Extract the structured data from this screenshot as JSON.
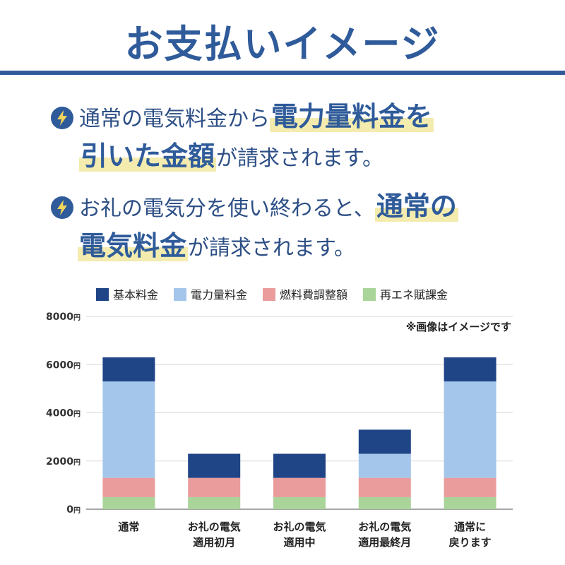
{
  "header": {
    "title": "お支払いイメージ"
  },
  "bullets": [
    {
      "icon": "lightning-icon",
      "line1_plain": "通常の電気料金から",
      "line1_hl": "電力量料金を",
      "line2_hl": "引いた金額",
      "line2_plain": "が請求されます。"
    },
    {
      "icon": "lightning-icon",
      "line1_plain": "お礼の電気分を使い終わると、",
      "line1_hl": "通常の",
      "line2_hl": "電気料金",
      "line2_plain": "が請求されます。"
    }
  ],
  "chart_note": "※画像はイメージです",
  "chart_data": {
    "type": "bar",
    "stacked": true,
    "categories": [
      "通常",
      "お礼の電気\n適用初月",
      "お礼の電気\n適用中",
      "お礼の電気\n適用最終月",
      "通常に\n戻ります"
    ],
    "series": [
      {
        "name": "再エネ賦課金",
        "color": "#a9d49a",
        "values": [
          500,
          500,
          500,
          500,
          500
        ]
      },
      {
        "name": "燃料費調整額",
        "color": "#ea9c9c",
        "values": [
          800,
          800,
          800,
          800,
          800
        ]
      },
      {
        "name": "電力量料金",
        "color": "#a4c6ea",
        "values": [
          4000,
          0,
          0,
          1000,
          4000
        ]
      },
      {
        "name": "基本料金",
        "color": "#1f4587",
        "values": [
          1000,
          1000,
          1000,
          1000,
          1000
        ]
      }
    ],
    "legend_order": [
      "基本料金",
      "電力量料金",
      "燃料費調整額",
      "再エネ賦課金"
    ],
    "y_ticks": [
      "8000",
      "6000",
      "4000",
      "2000",
      "0"
    ],
    "y_unit": "円",
    "ylim": [
      0,
      8000
    ],
    "grid": true,
    "legend_position": "top"
  }
}
